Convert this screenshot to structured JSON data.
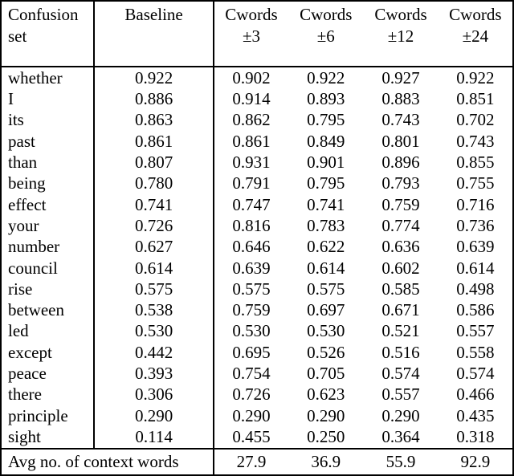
{
  "colors": {
    "background": "#ffffff",
    "text": "#000000",
    "border": "#000000"
  },
  "table": {
    "header": {
      "col1_line1": "Confusion",
      "col1_line2": "set",
      "baseline": "Baseline",
      "cwords_cols": [
        {
          "label": "Cwords",
          "offset": "±3"
        },
        {
          "label": "Cwords",
          "offset": "±6"
        },
        {
          "label": "Cwords",
          "offset": "±12"
        },
        {
          "label": "Cwords",
          "offset": "±24"
        }
      ]
    },
    "rows": [
      {
        "label": "whether",
        "baseline": "0.922",
        "values": [
          "0.902",
          "0.922",
          "0.927",
          "0.922"
        ]
      },
      {
        "label": "I",
        "baseline": "0.886",
        "values": [
          "0.914",
          "0.893",
          "0.883",
          "0.851"
        ]
      },
      {
        "label": "its",
        "baseline": "0.863",
        "values": [
          "0.862",
          "0.795",
          "0.743",
          "0.702"
        ]
      },
      {
        "label": "past",
        "baseline": "0.861",
        "values": [
          "0.861",
          "0.849",
          "0.801",
          "0.743"
        ]
      },
      {
        "label": "than",
        "baseline": "0.807",
        "values": [
          "0.931",
          "0.901",
          "0.896",
          "0.855"
        ]
      },
      {
        "label": "being",
        "baseline": "0.780",
        "values": [
          "0.791",
          "0.795",
          "0.793",
          "0.755"
        ]
      },
      {
        "label": "effect",
        "baseline": "0.741",
        "values": [
          "0.747",
          "0.741",
          "0.759",
          "0.716"
        ]
      },
      {
        "label": "your",
        "baseline": "0.726",
        "values": [
          "0.816",
          "0.783",
          "0.774",
          "0.736"
        ]
      },
      {
        "label": "number",
        "baseline": "0.627",
        "values": [
          "0.646",
          "0.622",
          "0.636",
          "0.639"
        ]
      },
      {
        "label": "council",
        "baseline": "0.614",
        "values": [
          "0.639",
          "0.614",
          "0.602",
          "0.614"
        ]
      },
      {
        "label": "rise",
        "baseline": "0.575",
        "values": [
          "0.575",
          "0.575",
          "0.585",
          "0.498"
        ]
      },
      {
        "label": "between",
        "baseline": "0.538",
        "values": [
          "0.759",
          "0.697",
          "0.671",
          "0.586"
        ]
      },
      {
        "label": "led",
        "baseline": "0.530",
        "values": [
          "0.530",
          "0.530",
          "0.521",
          "0.557"
        ]
      },
      {
        "label": "except",
        "baseline": "0.442",
        "values": [
          "0.695",
          "0.526",
          "0.516",
          "0.558"
        ]
      },
      {
        "label": "peace",
        "baseline": "0.393",
        "values": [
          "0.754",
          "0.705",
          "0.574",
          "0.574"
        ]
      },
      {
        "label": "there",
        "baseline": "0.306",
        "values": [
          "0.726",
          "0.623",
          "0.557",
          "0.466"
        ]
      },
      {
        "label": "principle",
        "baseline": "0.290",
        "values": [
          "0.290",
          "0.290",
          "0.290",
          "0.435"
        ]
      },
      {
        "label": "sight",
        "baseline": "0.114",
        "values": [
          "0.455",
          "0.250",
          "0.364",
          "0.318"
        ]
      }
    ],
    "footer": {
      "label": "Avg no. of context words",
      "values": [
        "27.9",
        "36.9",
        "55.9",
        "92.9"
      ]
    }
  }
}
